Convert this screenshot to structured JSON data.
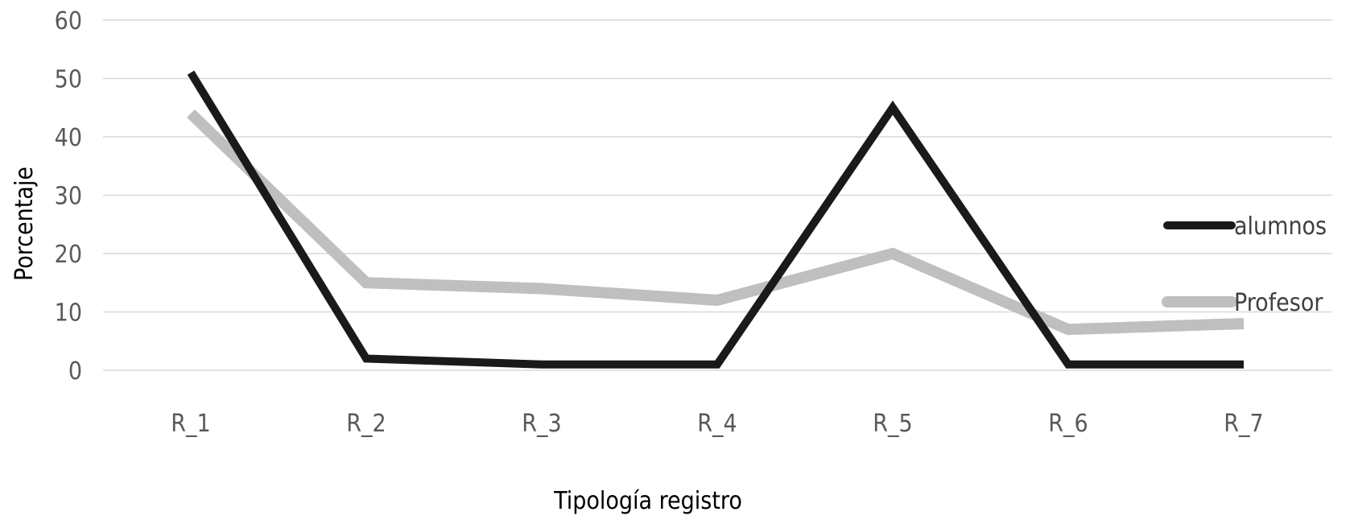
{
  "chart_data": {
    "type": "line",
    "categories": [
      "R_1",
      "R_2",
      "R_3",
      "R_4",
      "R_5",
      "R_6",
      "R_7"
    ],
    "series": [
      {
        "name": "alumnos",
        "values": [
          51,
          2,
          1,
          1,
          45,
          1,
          1
        ],
        "color": "#1a1a1a"
      },
      {
        "name": "Profesor",
        "values": [
          44,
          15,
          14,
          12,
          20,
          7,
          8
        ],
        "color": "#bfbfbf"
      }
    ],
    "xlabel": "Tipología registro",
    "ylabel": "Porcentaje",
    "ylim": [
      0,
      60
    ],
    "yticks": [
      "0",
      "10",
      "20",
      "30",
      "40",
      "50",
      "60"
    ],
    "grid": true,
    "legend_position": "right"
  }
}
